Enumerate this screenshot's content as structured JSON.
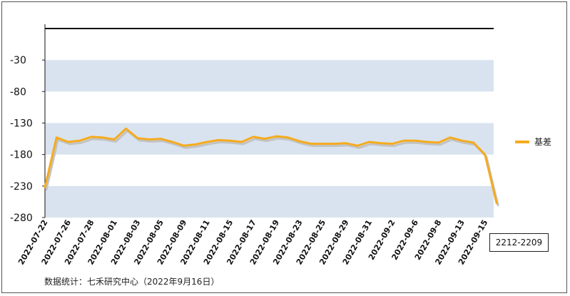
{
  "chart_data": {
    "type": "line",
    "x": [
      "2022-07-22",
      "2022-07-25",
      "2022-07-26",
      "2022-07-27",
      "2022-07-28",
      "2022-07-29",
      "2022-08-01",
      "2022-08-02",
      "2022-08-03",
      "2022-08-04",
      "2022-08-05",
      "2022-08-08",
      "2022-08-09",
      "2022-08-10",
      "2022-08-11",
      "2022-08-12",
      "2022-08-15",
      "2022-08-16",
      "2022-08-17",
      "2022-08-18",
      "2022-08-19",
      "2022-08-22",
      "2022-08-23",
      "2022-08-24",
      "2022-08-25",
      "2022-08-26",
      "2022-08-29",
      "2022-08-30",
      "2022-08-31",
      "2022-09-1",
      "2022-09-2",
      "2022-09-5",
      "2022-09-6",
      "2022-09-7",
      "2022-09-8",
      "2022-09-9",
      "2022-09-13",
      "2022-09-14",
      "2022-09-15",
      "2022-09-16"
    ],
    "xtick_labels": [
      "2022-07-22",
      "2022-07-26",
      "2022-07-28",
      "2022-08-01",
      "2022-08-03",
      "2022-08-05",
      "2022-08-09",
      "2022-08-11",
      "2022-08-15",
      "2022-08-17",
      "2022-08-19",
      "2022-08-23",
      "2022-08-25",
      "2022-08-29",
      "2022-08-31",
      "2022-09-2",
      "2022-09-6",
      "2022-09-8",
      "2022-09-13",
      "2022-09-15"
    ],
    "series": [
      {
        "name": "基差",
        "values": [
          -232,
          -153,
          -160,
          -158,
          -152,
          -153,
          -156,
          -139,
          -154,
          -156,
          -155,
          -160,
          -166,
          -164,
          -160,
          -157,
          -158,
          -160,
          -152,
          -155,
          -151,
          -153,
          -159,
          -163,
          -163,
          -163,
          -162,
          -166,
          -160,
          -162,
          -163,
          -158,
          -158,
          -160,
          -161,
          -153,
          -158,
          -161,
          -180,
          -257
        ]
      }
    ],
    "yticks": [
      -30,
      -80,
      -130,
      -180,
      -230,
      -280
    ],
    "ylim": [
      -280,
      20
    ],
    "grid": "alternating horizontal bands",
    "legend_position": "right",
    "colors": {
      "line": "#f5ab1e",
      "shadow": "#c2c2c2",
      "band": "#d9e3ef"
    }
  },
  "contract_label": "2212-2209",
  "source_note": "数据统计：七禾研究中心（2022年9月16日）"
}
